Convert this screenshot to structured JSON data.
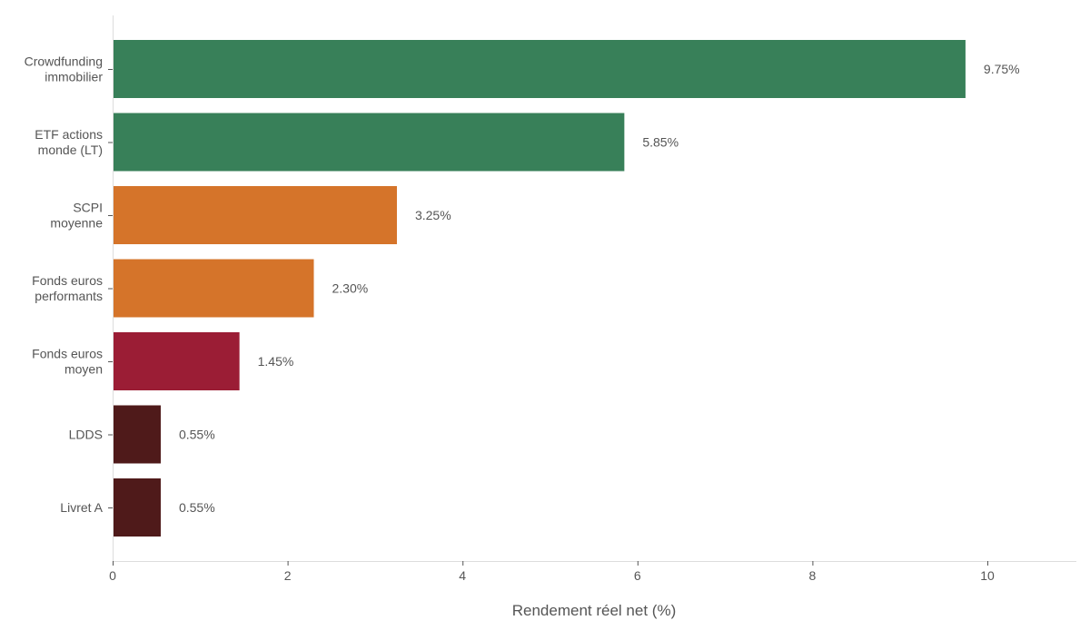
{
  "chart_data": {
    "type": "bar",
    "orientation": "horizontal",
    "categories": [
      [
        "Crowdfunding",
        "immobilier"
      ],
      [
        "ETF actions",
        "monde (LT)"
      ],
      [
        "SCPI",
        "moyenne"
      ],
      [
        "Fonds euros",
        "performants"
      ],
      [
        "Fonds euros",
        "moyen"
      ],
      [
        "LDDS"
      ],
      [
        "Livret A"
      ]
    ],
    "values": [
      9.75,
      5.85,
      3.25,
      2.3,
      1.45,
      0.55,
      0.55
    ],
    "data_labels": [
      "9.75%",
      "5.85%",
      "3.25%",
      "2.30%",
      "1.45%",
      "0.55%",
      "0.55%"
    ],
    "colors": [
      "#388059",
      "#388059",
      "#d5742a",
      "#d5742a",
      "#9b1d35",
      "#4f1a1a",
      "#4f1a1a"
    ],
    "xlabel": "Rendement réel net (%)",
    "ylabel": "",
    "xlim": [
      0,
      11
    ],
    "xticks": [
      0,
      2,
      4,
      6,
      8,
      10
    ],
    "grid": false,
    "legend": "none"
  }
}
